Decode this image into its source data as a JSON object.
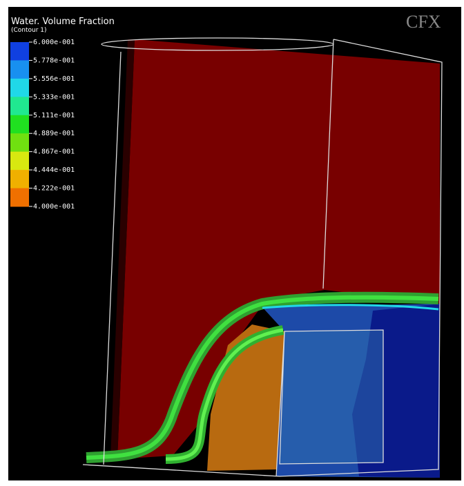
{
  "title": "Water. Volume Fraction",
  "subtitle": "(Contour 1)",
  "legend": {
    "labels": [
      "6.000e-001",
      "5.778e-001",
      "5.556e-001",
      "5.333e-001",
      "5.111e-001",
      "4.889e-001",
      "4.867e-001",
      "4.444e-001",
      "4.222e-001",
      "4.000e-001"
    ],
    "colors": [
      "#1040e0",
      "#1890f0",
      "#20d8e8",
      "#20e890",
      "#20e020",
      "#70e010",
      "#d8e810",
      "#f0b000",
      "#f07000",
      "#f03010"
    ]
  },
  "watermark": "CFX"
}
